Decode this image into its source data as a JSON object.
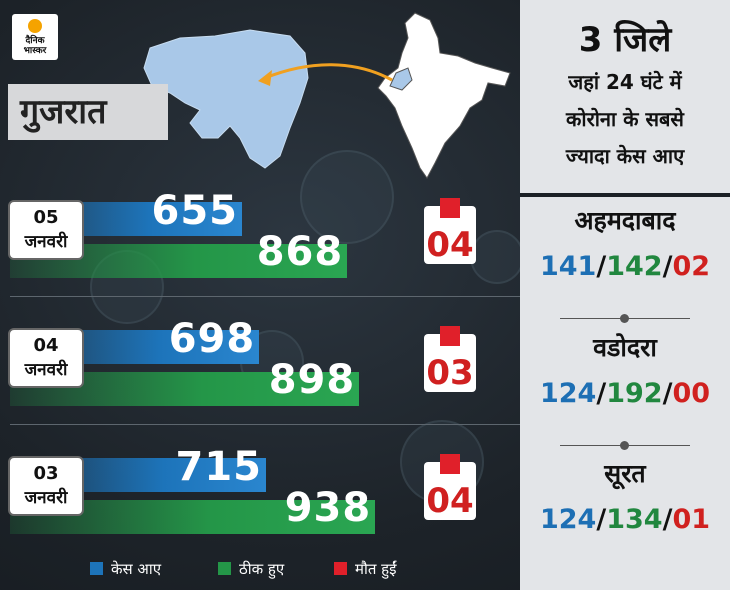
{
  "brand": {
    "line1": "दैनिक",
    "line2": "भास्कर"
  },
  "state": "गुजरात",
  "chart_data": {
    "type": "bar",
    "categories": [
      {
        "day": "05",
        "month": "जनवरी"
      },
      {
        "day": "04",
        "month": "जनवरी"
      },
      {
        "day": "03",
        "month": "जनवरी"
      }
    ],
    "series": [
      {
        "name": "केस आए",
        "color": "#1d74ba",
        "values": [
          655,
          698,
          715
        ]
      },
      {
        "name": "ठीक हुए",
        "color": "#249648",
        "values": [
          868,
          898,
          938
        ]
      },
      {
        "name": "मौत हुईं",
        "color": "#e0202a",
        "values": [
          "04",
          "03",
          "04"
        ]
      }
    ]
  },
  "legend": [
    {
      "label": "केस आए",
      "color": "#1d74ba"
    },
    {
      "label": "ठीक हुए",
      "color": "#249648"
    },
    {
      "label": "मौत हुईं",
      "color": "#e0202a"
    }
  ],
  "panel": {
    "title_line1": "3 जिले",
    "title_line2": "जहां 24 घंटे में",
    "title_line3": "कोरोना के सबसे",
    "title_line4": "ज्यादा केस आए",
    "cities": [
      {
        "name": "अहमदाबाद",
        "cases": "141",
        "recovered": "142",
        "deaths": "02"
      },
      {
        "name": "वडोदरा",
        "cases": "124",
        "recovered": "192",
        "deaths": "00"
      },
      {
        "name": "सूरत",
        "cases": "124",
        "recovered": "134",
        "deaths": "01"
      }
    ]
  }
}
